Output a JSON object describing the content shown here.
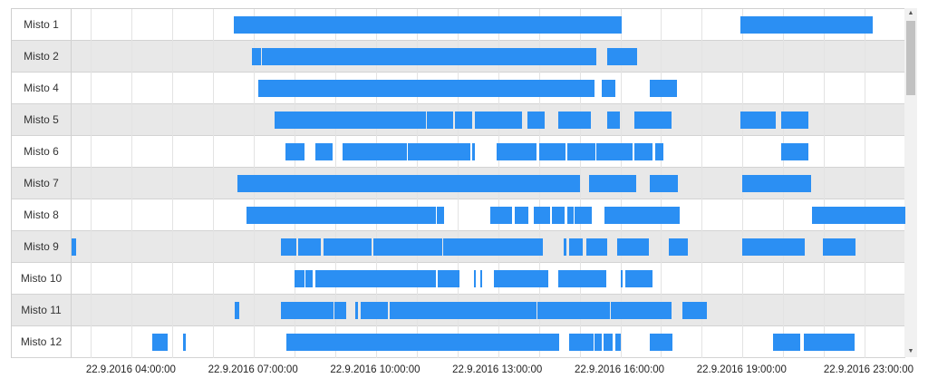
{
  "timeline": {
    "range": {
      "start": "2016-09-22 02:30",
      "end": "2016-09-22 23:00"
    },
    "ticks": [
      {
        "label": "22.9.2016 04:00:00",
        "time": "04:00"
      },
      {
        "label": "22.9.2016 07:00:00",
        "time": "07:00"
      },
      {
        "label": "22.9.2016 10:00:00",
        "time": "10:00"
      },
      {
        "label": "22.9.2016 13:00:00",
        "time": "13:00"
      },
      {
        "label": "22.9.2016 16:00:00",
        "time": "16:00"
      },
      {
        "label": "22.9.2016 19:00:00",
        "time": "19:00"
      },
      {
        "label": "22.9.2016 23:00:00",
        "time": "23:00"
      }
    ],
    "gridlines": [
      "03:00",
      "04:00",
      "05:00",
      "06:00",
      "07:00",
      "08:00",
      "09:00",
      "10:00",
      "11:00",
      "12:00",
      "13:00",
      "14:00",
      "15:00",
      "16:00",
      "17:00",
      "18:00",
      "19:00",
      "20:00",
      "21:00",
      "22:00",
      "23:00"
    ],
    "bar_color": "#2b8ff3",
    "row_alt_color": "#e8e8e8",
    "rows": [
      {
        "label": "Misto 1",
        "bars": [
          [
            "06:30",
            "16:02"
          ],
          [
            "18:57",
            "22:12"
          ]
        ]
      },
      {
        "label": "Misto 2",
        "bars": [
          [
            "06:57",
            "07:11"
          ],
          [
            "07:12",
            "15:25"
          ],
          [
            "15:40",
            "16:25"
          ]
        ]
      },
      {
        "label": "Misto 4",
        "bars": [
          [
            "07:06",
            "15:22"
          ],
          [
            "15:32",
            "15:52"
          ],
          [
            "16:44",
            "17:24"
          ]
        ]
      },
      {
        "label": "Misto 5",
        "bars": [
          [
            "07:30",
            "11:13"
          ],
          [
            "11:15",
            "11:53"
          ],
          [
            "11:56",
            "12:22"
          ],
          [
            "12:25",
            "13:35"
          ],
          [
            "13:43",
            "14:08"
          ],
          [
            "14:29",
            "15:17"
          ],
          [
            "15:41",
            "15:59"
          ],
          [
            "16:21",
            "17:11"
          ],
          [
            "17:12",
            "17:16"
          ],
          [
            "18:57",
            "19:49"
          ],
          [
            "19:57",
            "20:37"
          ]
        ]
      },
      {
        "label": "Misto 6",
        "bars": [
          [
            "07:47",
            "08:15"
          ],
          [
            "08:30",
            "08:56"
          ],
          [
            "09:10",
            "10:45"
          ],
          [
            "10:47",
            "12:19"
          ],
          [
            "12:21",
            "12:25"
          ],
          [
            "12:58",
            "13:57"
          ],
          [
            "14:01",
            "14:39"
          ],
          [
            "14:42",
            "15:23"
          ],
          [
            "15:25",
            "16:18"
          ],
          [
            "16:21",
            "16:48"
          ],
          [
            "16:51",
            "17:03"
          ],
          [
            "19:57",
            "20:37"
          ]
        ]
      },
      {
        "label": "Misto 7",
        "bars": [
          [
            "06:36",
            "15:00"
          ],
          [
            "15:14",
            "16:24"
          ],
          [
            "16:44",
            "17:25"
          ],
          [
            "18:59",
            "20:41"
          ]
        ]
      },
      {
        "label": "Misto 8",
        "bars": [
          [
            "06:49",
            "11:28"
          ],
          [
            "11:29",
            "11:40"
          ],
          [
            "12:49",
            "13:20"
          ],
          [
            "13:25",
            "13:45"
          ],
          [
            "13:52",
            "14:16"
          ],
          [
            "14:19",
            "14:38"
          ],
          [
            "14:42",
            "14:51"
          ],
          [
            "14:53",
            "15:18"
          ],
          [
            "15:37",
            "17:27"
          ],
          [
            "20:42",
            "23:07"
          ]
        ]
      },
      {
        "label": "Misto 9",
        "bars": [
          [
            "02:32",
            "02:38"
          ],
          [
            "07:40",
            "08:03"
          ],
          [
            "08:05",
            "08:39"
          ],
          [
            "08:42",
            "09:54"
          ],
          [
            "09:56",
            "11:37"
          ],
          [
            "11:39",
            "14:06"
          ],
          [
            "14:36",
            "14:40"
          ],
          [
            "14:45",
            "15:05"
          ],
          [
            "15:10",
            "15:41"
          ],
          [
            "15:55",
            "16:42"
          ],
          [
            "17:12",
            "17:40"
          ],
          [
            "19:00",
            "20:32"
          ],
          [
            "20:58",
            "21:46"
          ]
        ]
      },
      {
        "label": "Misto 10",
        "bars": [
          [
            "08:00",
            "08:14"
          ],
          [
            "08:16",
            "08:26"
          ],
          [
            "08:30",
            "10:29"
          ],
          [
            "10:30",
            "11:28"
          ],
          [
            "11:31",
            "12:03"
          ],
          [
            "12:24",
            "12:27"
          ],
          [
            "12:33",
            "12:36"
          ],
          [
            "12:54",
            "14:14"
          ],
          [
            "14:29",
            "15:39"
          ],
          [
            "16:00",
            "16:04"
          ],
          [
            "16:07",
            "16:48"
          ]
        ]
      },
      {
        "label": "Misto 11",
        "bars": [
          [
            "06:32",
            "06:38"
          ],
          [
            "07:40",
            "08:57"
          ],
          [
            "08:59",
            "09:16"
          ],
          [
            "09:30",
            "09:34"
          ],
          [
            "09:38",
            "10:17"
          ],
          [
            "10:20",
            "13:56"
          ],
          [
            "13:58",
            "15:45"
          ],
          [
            "15:46",
            "17:16"
          ],
          [
            "17:32",
            "18:07"
          ]
        ]
      },
      {
        "label": "Misto 12",
        "bars": [
          [
            "04:30",
            "04:53"
          ],
          [
            "05:15",
            "05:20"
          ],
          [
            "07:48",
            "14:30"
          ],
          [
            "14:45",
            "15:20"
          ],
          [
            "15:22",
            "15:32"
          ],
          [
            "15:35",
            "15:49"
          ],
          [
            "15:52",
            "16:01"
          ],
          [
            "16:44",
            "17:17"
          ],
          [
            "19:45",
            "20:25"
          ],
          [
            "20:30",
            "21:45"
          ]
        ]
      }
    ],
    "scrollbar": {
      "up_icon": "▲",
      "down_icon": "▼"
    }
  }
}
